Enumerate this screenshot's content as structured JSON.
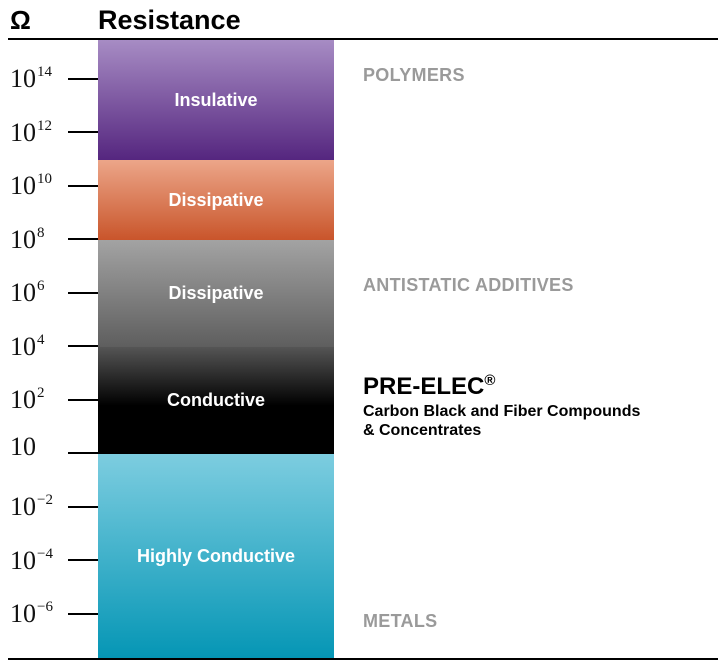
{
  "header": {
    "unit_symbol": "Ω",
    "title": "Resistance"
  },
  "scale": {
    "ticks": [
      {
        "base": "10",
        "exponent": "14"
      },
      {
        "base": "10",
        "exponent": "12"
      },
      {
        "base": "10",
        "exponent": "10"
      },
      {
        "base": "10",
        "exponent": "8"
      },
      {
        "base": "10",
        "exponent": "6"
      },
      {
        "base": "10",
        "exponent": "4"
      },
      {
        "base": "10",
        "exponent": "2"
      },
      {
        "base": "10",
        "exponent": ""
      },
      {
        "base": "10",
        "exponent": "−2"
      },
      {
        "base": "10",
        "exponent": "−4"
      },
      {
        "base": "10",
        "exponent": "−6"
      }
    ]
  },
  "bands": [
    {
      "label": "Insulative",
      "color_top": "#a78cc4",
      "color_bottom": "#55267f"
    },
    {
      "label": "Dissipative",
      "color_top": "#eca689",
      "color_bottom": "#c9552b"
    },
    {
      "label": "Dissipative",
      "color_top": "#a3a3a3",
      "color_bottom": "#5e5e5e"
    },
    {
      "label": "Conductive",
      "color_top": "#555555",
      "color_bottom": "#000000"
    },
    {
      "label": "Highly Conductive",
      "color_top": "#7dcde0",
      "color_bottom": "#0596b5"
    }
  ],
  "categories": {
    "polymers": "POLYMERS",
    "antistatic": "ANTISTATIC ADDITIVES",
    "metals": "METALS"
  },
  "product": {
    "name": "PRE-ELEC",
    "mark": "®",
    "description_line1": "Carbon Black and Fiber Compounds",
    "description_line2": "& Concentrates"
  }
}
